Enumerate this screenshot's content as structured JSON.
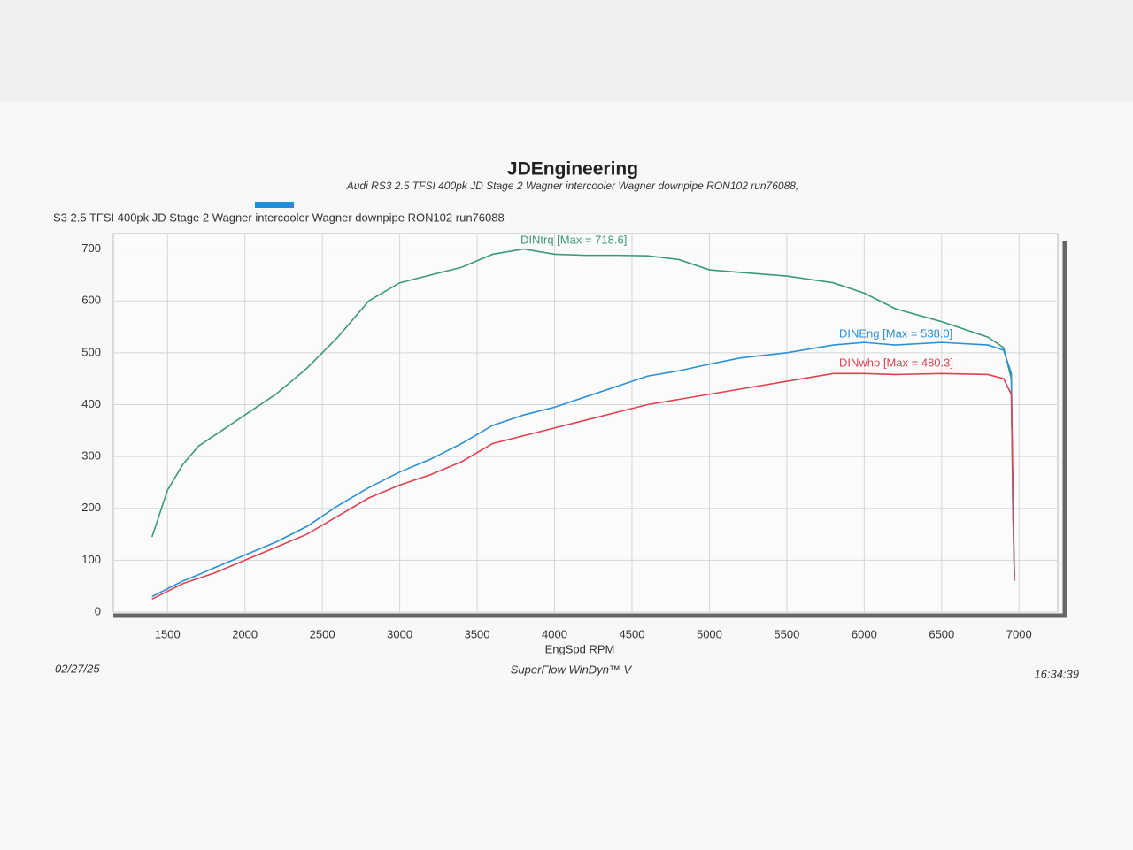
{
  "chart_data": {
    "type": "line",
    "title": "JDEngineering",
    "subtitle": "Audi RS3 2.5 TFSI 400pk  JD Stage 2  Wagner intercooler Wagner downpipe  RON102  run76088,",
    "run_label": "S3 2.5 TFSI 400pk  JD Stage 2  Wagner intercooler Wagner downpipe  RON102  run76088",
    "x_label": "EngSpd RPM",
    "date": "02/27/25",
    "footer": "SuperFlow WinDyn™ V",
    "time": "16:34:39",
    "x": [
      1400,
      1500,
      1600,
      1700,
      1800,
      2000,
      2200,
      2400,
      2600,
      2800,
      3000,
      3200,
      3400,
      3600,
      3800,
      4000,
      4200,
      4400,
      4600,
      4800,
      5000,
      5200,
      5500,
      5800,
      6000,
      6200,
      6500,
      6800,
      6900,
      6950,
      6960,
      6970
    ],
    "series": [
      {
        "name": "DINtrq [Max = 718.6]",
        "color": "#3a9a78",
        "values": [
          145,
          235,
          285,
          320,
          340,
          380,
          420,
          470,
          530,
          600,
          635,
          650,
          665,
          690,
          700,
          690,
          688,
          688,
          687,
          680,
          660,
          655,
          648,
          635,
          615,
          585,
          560,
          530,
          510,
          450,
          200,
          70
        ]
      },
      {
        "name": "DINEng [Max = 538.0]",
        "color": "#2a8fd6",
        "values": [
          30,
          45,
          60,
          72,
          85,
          110,
          135,
          165,
          205,
          240,
          270,
          295,
          325,
          360,
          380,
          395,
          415,
          435,
          455,
          465,
          478,
          490,
          500,
          515,
          520,
          515,
          520,
          515,
          505,
          460,
          200,
          70
        ]
      },
      {
        "name": "DINwhp [Max = 480.3]",
        "color": "#e04050",
        "values": [
          25,
          40,
          55,
          65,
          75,
          100,
          125,
          150,
          185,
          220,
          245,
          265,
          290,
          325,
          340,
          355,
          370,
          385,
          400,
          410,
          420,
          430,
          445,
          460,
          460,
          458,
          460,
          458,
          450,
          420,
          250,
          60
        ]
      }
    ],
    "xlim": [
      1150,
      7250
    ],
    "ylim": [
      0,
      730
    ],
    "xticks": [
      1500,
      2000,
      2500,
      3000,
      3500,
      4000,
      4500,
      5000,
      5500,
      6000,
      6500,
      7000
    ],
    "yticks": [
      0,
      100,
      200,
      300,
      400,
      500,
      600,
      700
    ],
    "grid": true
  }
}
